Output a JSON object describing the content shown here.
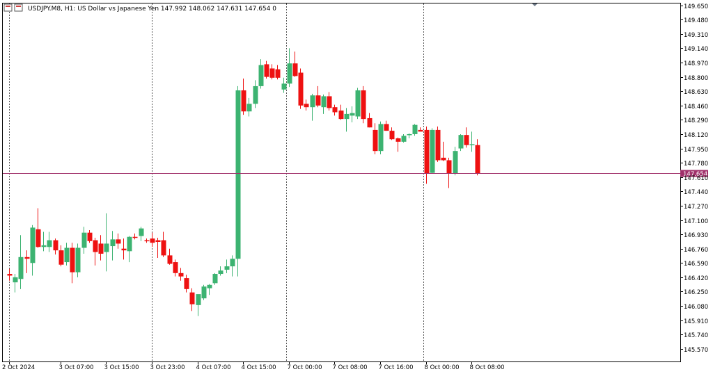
{
  "header": {
    "info_text": "USDJPY.M8, H1:  US Dollar vs Japanese Yen  147.992 148.062 147.631 147.654  0"
  },
  "chart_data": {
    "type": "candlestick",
    "symbol": "USDJPY.M8",
    "timeframe": "H1",
    "description": "US Dollar vs Japanese Yen",
    "ohlc_header": {
      "open": 147.992,
      "high": 148.062,
      "low": 147.631,
      "close": 147.654,
      "volume": 0
    },
    "current_price": 147.654,
    "current_price_label": "147.654",
    "y_range": [
      145.42,
      149.68
    ],
    "y_ticks": [
      "149.650",
      "149.480",
      "149.310",
      "149.140",
      "148.970",
      "148.800",
      "148.630",
      "148.460",
      "148.290",
      "148.120",
      "147.950",
      "147.780",
      "147.610",
      "147.440",
      "147.270",
      "147.100",
      "146.930",
      "146.760",
      "146.590",
      "146.420",
      "146.250",
      "146.080",
      "145.910",
      "145.740",
      "145.570"
    ],
    "x_ticks": [
      {
        "label": "2 Oct 2024",
        "index": 0
      },
      {
        "label": "3 Oct 07:00",
        "index": 9
      },
      {
        "label": "3 Oct 15:00",
        "index": 17
      },
      {
        "label": "3 Oct 23:00",
        "index": 25
      },
      {
        "label": "4 Oct 07:00",
        "index": 33
      },
      {
        "label": "4 Oct 15:00",
        "index": 41
      },
      {
        "label": "7 Oct 00:00",
        "index": 49
      },
      {
        "label": "7 Oct 08:00",
        "index": 57
      },
      {
        "label": "7 Oct 16:00",
        "index": 65
      },
      {
        "label": "8 Oct 00:00",
        "index": 73
      },
      {
        "label": "8 Oct 08:00",
        "index": 81
      }
    ],
    "separators": [
      0,
      25,
      48.5,
      72.5
    ],
    "colors": {
      "up": "#3cb371",
      "down": "#ee1111",
      "price_line": "#a0306a",
      "grid_sep": "#555555",
      "axis": "#000000"
    },
    "candles": [
      {
        "o": 146.46,
        "h": 146.52,
        "l": 146.38,
        "c": 146.44
      },
      {
        "o": 146.36,
        "h": 146.46,
        "l": 146.24,
        "c": 146.42
      },
      {
        "o": 146.4,
        "h": 146.92,
        "l": 146.28,
        "c": 146.66
      },
      {
        "o": 146.66,
        "h": 146.74,
        "l": 146.47,
        "c": 146.64
      },
      {
        "o": 146.59,
        "h": 147.04,
        "l": 146.44,
        "c": 147.01
      },
      {
        "o": 146.99,
        "h": 147.24,
        "l": 146.77,
        "c": 146.78
      },
      {
        "o": 146.78,
        "h": 146.96,
        "l": 146.73,
        "c": 146.8
      },
      {
        "o": 146.78,
        "h": 146.96,
        "l": 146.72,
        "c": 146.86
      },
      {
        "o": 146.86,
        "h": 146.88,
        "l": 146.69,
        "c": 146.74
      },
      {
        "o": 146.74,
        "h": 146.8,
        "l": 146.55,
        "c": 146.57
      },
      {
        "o": 146.6,
        "h": 146.83,
        "l": 146.56,
        "c": 146.77
      },
      {
        "o": 146.77,
        "h": 146.83,
        "l": 146.35,
        "c": 146.48
      },
      {
        "o": 146.48,
        "h": 146.82,
        "l": 146.42,
        "c": 146.77
      },
      {
        "o": 146.77,
        "h": 147.02,
        "l": 146.7,
        "c": 146.95
      },
      {
        "o": 146.95,
        "h": 146.98,
        "l": 146.83,
        "c": 146.85
      },
      {
        "o": 146.86,
        "h": 146.89,
        "l": 146.56,
        "c": 146.72
      },
      {
        "o": 146.82,
        "h": 146.92,
        "l": 146.62,
        "c": 146.7
      },
      {
        "o": 146.72,
        "h": 147.18,
        "l": 146.49,
        "c": 146.82
      },
      {
        "o": 146.79,
        "h": 146.97,
        "l": 146.62,
        "c": 146.87
      },
      {
        "o": 146.87,
        "h": 146.94,
        "l": 146.76,
        "c": 146.82
      },
      {
        "o": 146.76,
        "h": 146.88,
        "l": 146.63,
        "c": 146.74
      },
      {
        "o": 146.73,
        "h": 146.91,
        "l": 146.6,
        "c": 146.9
      },
      {
        "o": 146.9,
        "h": 146.94,
        "l": 146.87,
        "c": 146.89
      },
      {
        "o": 146.91,
        "h": 147.02,
        "l": 146.85,
        "c": 147.0
      },
      {
        "o": 146.86,
        "h": 146.88,
        "l": 146.83,
        "c": 146.85
      },
      {
        "o": 146.88,
        "h": 146.95,
        "l": 146.78,
        "c": 146.83
      },
      {
        "o": 146.86,
        "h": 146.89,
        "l": 146.65,
        "c": 146.84
      },
      {
        "o": 146.86,
        "h": 146.96,
        "l": 146.66,
        "c": 146.68
      },
      {
        "o": 146.68,
        "h": 146.76,
        "l": 146.57,
        "c": 146.58
      },
      {
        "o": 146.6,
        "h": 146.63,
        "l": 146.43,
        "c": 146.47
      },
      {
        "o": 146.47,
        "h": 146.53,
        "l": 146.38,
        "c": 146.43
      },
      {
        "o": 146.41,
        "h": 146.45,
        "l": 146.24,
        "c": 146.28
      },
      {
        "o": 146.24,
        "h": 146.29,
        "l": 146.02,
        "c": 146.1
      },
      {
        "o": 146.09,
        "h": 146.21,
        "l": 145.96,
        "c": 146.22
      },
      {
        "o": 146.17,
        "h": 146.33,
        "l": 146.15,
        "c": 146.31
      },
      {
        "o": 146.29,
        "h": 146.34,
        "l": 146.21,
        "c": 146.33
      },
      {
        "o": 146.35,
        "h": 146.47,
        "l": 146.33,
        "c": 146.46
      },
      {
        "o": 146.46,
        "h": 146.55,
        "l": 146.44,
        "c": 146.5
      },
      {
        "o": 146.51,
        "h": 146.63,
        "l": 146.47,
        "c": 146.55
      },
      {
        "o": 146.55,
        "h": 146.68,
        "l": 146.43,
        "c": 146.64
      },
      {
        "o": 146.64,
        "h": 148.69,
        "l": 146.43,
        "c": 148.64
      },
      {
        "o": 148.64,
        "h": 148.78,
        "l": 148.35,
        "c": 148.39
      },
      {
        "o": 148.39,
        "h": 148.55,
        "l": 148.33,
        "c": 148.48
      },
      {
        "o": 148.48,
        "h": 148.76,
        "l": 148.43,
        "c": 148.69
      },
      {
        "o": 148.69,
        "h": 149.01,
        "l": 148.66,
        "c": 148.94
      },
      {
        "o": 148.95,
        "h": 148.99,
        "l": 148.78,
        "c": 148.8
      },
      {
        "o": 148.9,
        "h": 148.95,
        "l": 148.77,
        "c": 148.79
      },
      {
        "o": 148.89,
        "h": 148.94,
        "l": 148.77,
        "c": 148.79
      },
      {
        "o": 148.65,
        "h": 148.79,
        "l": 148.61,
        "c": 148.72
      },
      {
        "o": 148.72,
        "h": 149.14,
        "l": 148.68,
        "c": 148.96
      },
      {
        "o": 148.96,
        "h": 149.1,
        "l": 148.8,
        "c": 148.81
      },
      {
        "o": 148.85,
        "h": 148.9,
        "l": 148.42,
        "c": 148.46
      },
      {
        "o": 148.48,
        "h": 148.53,
        "l": 148.4,
        "c": 148.44
      },
      {
        "o": 148.44,
        "h": 148.6,
        "l": 148.28,
        "c": 148.58
      },
      {
        "o": 148.58,
        "h": 148.69,
        "l": 148.44,
        "c": 148.46
      },
      {
        "o": 148.44,
        "h": 148.59,
        "l": 148.36,
        "c": 148.57
      },
      {
        "o": 148.57,
        "h": 148.62,
        "l": 148.4,
        "c": 148.43
      },
      {
        "o": 148.44,
        "h": 148.47,
        "l": 148.34,
        "c": 148.38
      },
      {
        "o": 148.4,
        "h": 148.47,
        "l": 148.29,
        "c": 148.3
      },
      {
        "o": 148.3,
        "h": 148.43,
        "l": 148.15,
        "c": 148.36
      },
      {
        "o": 148.34,
        "h": 148.45,
        "l": 148.26,
        "c": 148.37
      },
      {
        "o": 148.33,
        "h": 148.67,
        "l": 148.3,
        "c": 148.64
      },
      {
        "o": 148.64,
        "h": 148.69,
        "l": 148.25,
        "c": 148.3
      },
      {
        "o": 148.31,
        "h": 148.37,
        "l": 148.2,
        "c": 148.2
      },
      {
        "o": 148.17,
        "h": 148.25,
        "l": 147.88,
        "c": 147.92
      },
      {
        "o": 147.92,
        "h": 148.27,
        "l": 147.88,
        "c": 148.24
      },
      {
        "o": 148.24,
        "h": 148.28,
        "l": 148.16,
        "c": 148.16
      },
      {
        "o": 148.16,
        "h": 148.2,
        "l": 148.05,
        "c": 148.06
      },
      {
        "o": 148.07,
        "h": 148.08,
        "l": 147.91,
        "c": 148.03
      },
      {
        "o": 148.03,
        "h": 148.12,
        "l": 148.02,
        "c": 148.1
      },
      {
        "o": 148.11,
        "h": 148.13,
        "l": 148.07,
        "c": 148.12
      },
      {
        "o": 148.12,
        "h": 148.24,
        "l": 148.1,
        "c": 148.23
      },
      {
        "o": 148.17,
        "h": 148.2,
        "l": 148.16,
        "c": 148.15
      },
      {
        "o": 148.17,
        "h": 148.21,
        "l": 147.53,
        "c": 147.65
      },
      {
        "o": 147.66,
        "h": 148.19,
        "l": 147.65,
        "c": 148.17
      },
      {
        "o": 148.17,
        "h": 148.21,
        "l": 147.79,
        "c": 147.81
      },
      {
        "o": 147.84,
        "h": 148.03,
        "l": 147.8,
        "c": 147.81
      },
      {
        "o": 147.81,
        "h": 147.84,
        "l": 147.48,
        "c": 147.65
      },
      {
        "o": 147.65,
        "h": 147.97,
        "l": 147.63,
        "c": 147.92
      },
      {
        "o": 147.95,
        "h": 148.12,
        "l": 147.92,
        "c": 148.11
      },
      {
        "o": 148.11,
        "h": 148.2,
        "l": 147.96,
        "c": 147.99
      },
      {
        "o": 147.99,
        "h": 148.15,
        "l": 147.91,
        "c": 148.0
      },
      {
        "o": 147.99,
        "h": 148.06,
        "l": 147.63,
        "c": 147.65
      }
    ]
  }
}
